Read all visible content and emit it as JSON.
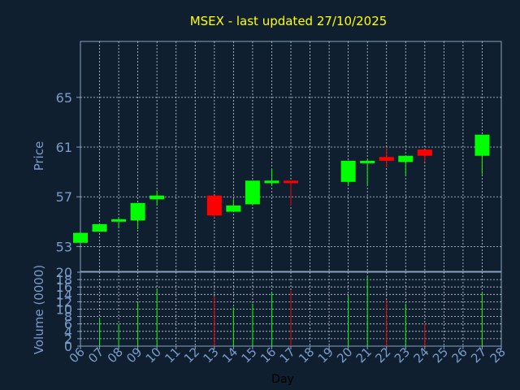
{
  "colors": {
    "background": "#0f1f30",
    "axis": "#8aa0c0",
    "grid": "#c8d0e0",
    "title": "#ffff00",
    "label": "#7a9cc8",
    "up": "#00ff00",
    "down": "#ff0000"
  },
  "chart_data": {
    "type": "candlestick",
    "title": "MSEX - last updated 27/10/2025",
    "xlabel": "Day",
    "ylabel": "Price",
    "volume_label": "Volume (0000)",
    "x_ticks": [
      "06",
      "07",
      "08",
      "09",
      "10",
      "11",
      "12",
      "13",
      "14",
      "15",
      "16",
      "17",
      "18",
      "19",
      "20",
      "21",
      "22",
      "23",
      "24",
      "25",
      "26",
      "27",
      "28"
    ],
    "price_ticks": [
      53,
      57,
      61,
      65
    ],
    "price_ylim": [
      51,
      69.5
    ],
    "volume_ticks": [
      0,
      2,
      4,
      6,
      8,
      10,
      12,
      14,
      16,
      18,
      20
    ],
    "volume_ylim": [
      0,
      20
    ],
    "grid": true,
    "candles": [
      {
        "day": "06",
        "open": 53.3,
        "close": 54.1,
        "high": 54.1,
        "low": 53.3,
        "volume": 0
      },
      {
        "day": "07",
        "open": 54.2,
        "close": 54.8,
        "high": 54.8,
        "low": 54.2,
        "volume": 7.5
      },
      {
        "day": "08",
        "open": 55.0,
        "close": 55.2,
        "high": 55.3,
        "low": 54.5,
        "volume": 6
      },
      {
        "day": "09",
        "open": 55.1,
        "close": 56.5,
        "high": 56.5,
        "low": 54.4,
        "volume": 12
      },
      {
        "day": "10",
        "open": 56.8,
        "close": 57.1,
        "high": 57.5,
        "low": 56.3,
        "volume": 15.5
      },
      {
        "day": "13",
        "open": 57.1,
        "close": 55.5,
        "high": 57.1,
        "low": 55.3,
        "volume": 13.5
      },
      {
        "day": "14",
        "open": 55.8,
        "close": 56.3,
        "high": 56.8,
        "low": 55.8,
        "volume": 10.5
      },
      {
        "day": "15",
        "open": 56.4,
        "close": 58.3,
        "high": 58.3,
        "low": 56.4,
        "volume": 11.5
      },
      {
        "day": "16",
        "open": 58.1,
        "close": 58.3,
        "high": 59.3,
        "low": 57.9,
        "volume": 14.5
      },
      {
        "day": "17",
        "open": 58.3,
        "close": 58.1,
        "high": 58.3,
        "low": 56.3,
        "volume": 15
      },
      {
        "day": "20",
        "open": 58.2,
        "close": 59.9,
        "high": 59.9,
        "low": 57.9,
        "volume": 13.5
      },
      {
        "day": "21",
        "open": 59.7,
        "close": 59.9,
        "high": 60.0,
        "low": 57.9,
        "volume": 19
      },
      {
        "day": "22",
        "open": 60.2,
        "close": 59.9,
        "high": 60.9,
        "low": 59.4,
        "volume": 12.5
      },
      {
        "day": "23",
        "open": 59.8,
        "close": 60.3,
        "high": 60.3,
        "low": 58.7,
        "volume": 11.5
      },
      {
        "day": "24",
        "open": 60.8,
        "close": 60.3,
        "high": 60.8,
        "low": 59.8,
        "volume": 6
      },
      {
        "day": "27",
        "open": 60.3,
        "close": 62.0,
        "high": 62.0,
        "low": 58.8,
        "volume": 14.5
      }
    ]
  }
}
